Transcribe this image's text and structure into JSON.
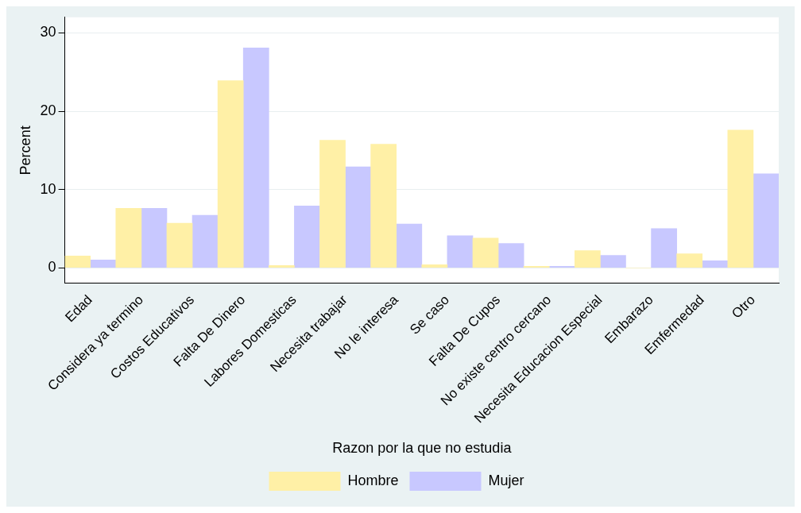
{
  "chart_data": {
    "type": "bar",
    "xlabel": "Razon por la que no estudia",
    "ylabel": "Percent",
    "categories": [
      "Edad",
      "Considera ya termino",
      "Costos Educativos",
      "Falta De Dinero",
      "Labores Domesticas",
      "Necesita trabajar",
      "No le interesa",
      "Se caso",
      "Falta De Cupos",
      "No existe centro cercano",
      "Necesita Educacion Especial",
      "Embarazo",
      "Emfermedad",
      "Otro"
    ],
    "series": [
      {
        "name": "Hombre",
        "color": "#fff0a6",
        "values": [
          1.5,
          7.6,
          5.7,
          23.9,
          0.3,
          16.3,
          15.8,
          0.4,
          3.8,
          0.2,
          2.2,
          0,
          1.8,
          17.6
        ]
      },
      {
        "name": "Mujer",
        "color": "#c8c8ff",
        "values": [
          1.0,
          7.6,
          6.7,
          28.1,
          7.9,
          12.9,
          5.6,
          4.1,
          3.1,
          0.2,
          1.6,
          5.0,
          0.9,
          12.0
        ]
      }
    ],
    "ylim": [
      -2,
      32
    ],
    "yticks": [
      0,
      10,
      20,
      30
    ],
    "grid": "y",
    "legend": "bottom"
  }
}
